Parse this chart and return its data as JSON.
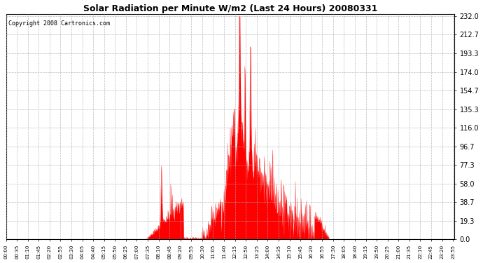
{
  "title": "Solar Radiation per Minute W/m2 (Last 24 Hours) 20080331",
  "copyright": "Copyright 2008 Cartronics.com",
  "y_ticks": [
    0.0,
    19.3,
    38.7,
    58.0,
    77.3,
    96.7,
    116.0,
    135.3,
    154.7,
    174.0,
    193.3,
    212.7,
    232.0
  ],
  "ymax": 232.0,
  "ymin": 0.0,
  "fill_color": "#FF0000",
  "line_color": "#FF0000",
  "bg_color": "#FFFFFF",
  "grid_color": "#AAAAAA",
  "dashed_line_color": "#FF0000",
  "x_labels": [
    "00:00",
    "00:35",
    "01:10",
    "01:45",
    "02:20",
    "02:55",
    "03:30",
    "04:05",
    "04:40",
    "05:15",
    "05:50",
    "06:25",
    "07:00",
    "07:35",
    "08:10",
    "08:45",
    "09:20",
    "09:55",
    "10:30",
    "11:05",
    "11:40",
    "12:15",
    "12:50",
    "13:25",
    "14:00",
    "14:35",
    "15:10",
    "15:45",
    "16:20",
    "16:55",
    "17:30",
    "18:05",
    "18:40",
    "19:15",
    "19:50",
    "20:25",
    "21:00",
    "21:35",
    "22:10",
    "22:45",
    "23:20",
    "23:55"
  ],
  "title_fontsize": 9,
  "copyright_fontsize": 6,
  "ytick_fontsize": 7,
  "xtick_fontsize": 5
}
